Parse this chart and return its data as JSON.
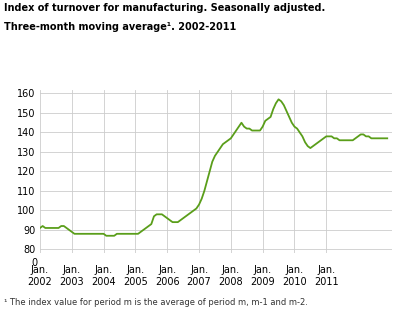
{
  "title_line1": "Index of turnover for manufacturing. Seasonally adjusted.",
  "title_line2": "Three-month moving average¹. 2002-2011",
  "footnote": "¹ The index value for period m is the average of period m, m-1 and m-2.",
  "line_color": "#5a9e1a",
  "background_color": "#ffffff",
  "grid_color": "#cccccc",
  "yticks_top": [
    80,
    90,
    100,
    110,
    120,
    130,
    140,
    150,
    160
  ],
  "yticks_bottom": [
    0
  ],
  "xtick_labels": [
    "Jan.\n2002",
    "Jan.\n2003",
    "Jan.\n2004",
    "Jan.\n2005",
    "Jan.\n2006",
    "Jan.\n2007",
    "Jan.\n2008",
    "Jan.\n2009",
    "Jan.\n2010",
    "Jan.\n2011"
  ],
  "values": [
    91,
    92,
    91,
    91,
    91,
    91,
    91,
    91,
    92,
    92,
    91,
    90,
    89,
    88,
    88,
    88,
    88,
    88,
    88,
    88,
    88,
    88,
    88,
    88,
    88,
    87,
    87,
    87,
    87,
    88,
    88,
    88,
    88,
    88,
    88,
    88,
    88,
    88,
    89,
    90,
    91,
    92,
    93,
    97,
    98,
    98,
    98,
    97,
    96,
    95,
    94,
    94,
    94,
    95,
    96,
    97,
    98,
    99,
    100,
    101,
    103,
    106,
    110,
    115,
    120,
    125,
    128,
    130,
    132,
    134,
    135,
    136,
    137,
    139,
    141,
    143,
    145,
    143,
    142,
    142,
    141,
    141,
    141,
    141,
    143,
    146,
    147,
    148,
    152,
    155,
    157,
    156,
    154,
    151,
    148,
    145,
    143,
    142,
    140,
    138,
    135,
    133,
    132,
    133,
    134,
    135,
    136,
    137,
    138,
    138,
    138,
    137,
    137,
    136,
    136,
    136,
    136,
    136,
    136,
    137,
    138,
    139,
    139,
    138,
    138,
    137,
    137,
    137,
    137,
    137,
    137,
    137
  ]
}
